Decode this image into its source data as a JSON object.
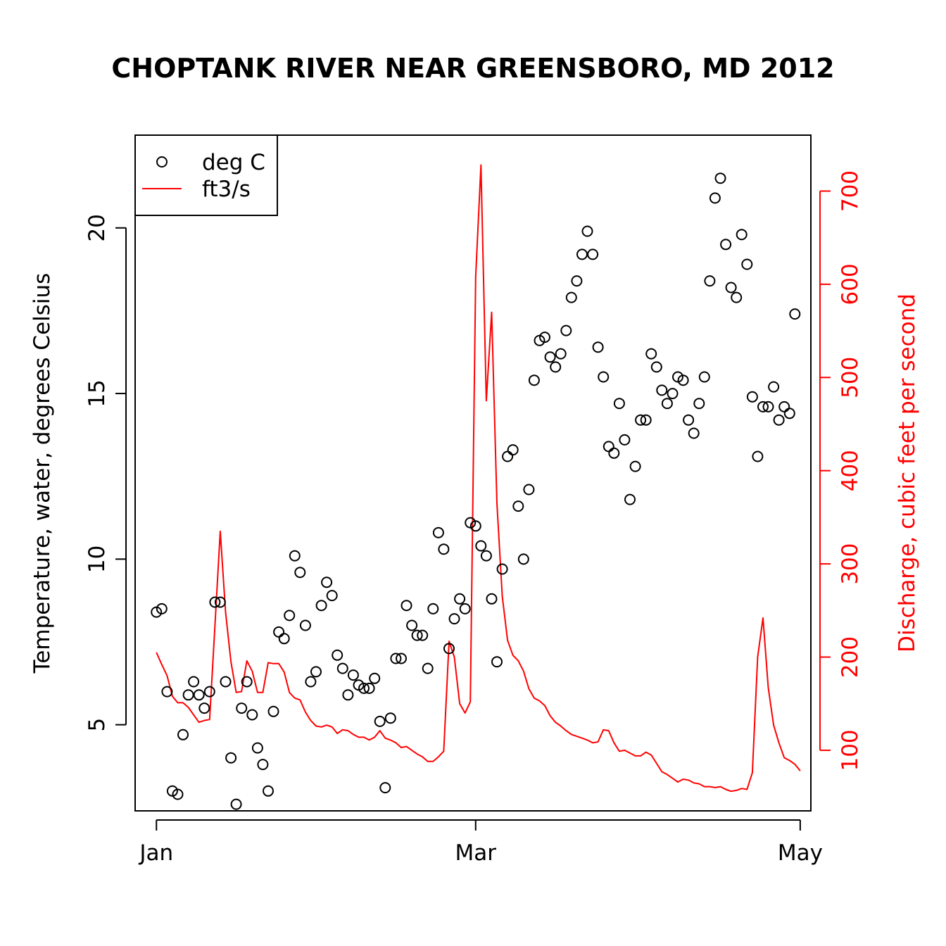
{
  "chart_data": {
    "type": "line",
    "title": "CHOPTANK RIVER NEAR GREENSBORO, MD 2012",
    "xlabel": "",
    "ylabel_left": "Temperature, water, degrees Celsius",
    "ylabel_right": "Discharge, cubic feet per second",
    "x_axis": {
      "type": "date",
      "range": [
        "2011-12-28",
        "2012-05-03"
      ],
      "ticks": [
        {
          "label": "Jan",
          "date": "2012-01-01"
        },
        {
          "label": "Mar",
          "date": "2012-03-01"
        },
        {
          "label": "May",
          "date": "2012-05-01"
        }
      ]
    },
    "y_left": {
      "range": [
        2.4,
        22.8
      ],
      "ticks": [
        5,
        10,
        15,
        20
      ]
    },
    "y_right": {
      "range": [
        35,
        760
      ],
      "ticks": [
        100,
        200,
        300,
        400,
        500,
        600,
        700
      ]
    },
    "legend": {
      "position": "top-left",
      "entries": [
        "deg C",
        "ft3/s"
      ]
    },
    "colors": {
      "temperature": "#000000",
      "discharge": "#ff0000"
    },
    "series": [
      {
        "name": "deg C",
        "kind": "scatter",
        "axis": "left",
        "color": "#000000",
        "points": [
          [
            "2012-01-01",
            8.4
          ],
          [
            "2012-01-02",
            8.5
          ],
          [
            "2012-01-03",
            6.0
          ],
          [
            "2012-01-04",
            3.0
          ],
          [
            "2012-01-05",
            2.9
          ],
          [
            "2012-01-06",
            4.7
          ],
          [
            "2012-01-07",
            5.9
          ],
          [
            "2012-01-08",
            6.3
          ],
          [
            "2012-01-09",
            5.9
          ],
          [
            "2012-01-10",
            5.5
          ],
          [
            "2012-01-11",
            6.0
          ],
          [
            "2012-01-12",
            8.7
          ],
          [
            "2012-01-13",
            8.7
          ],
          [
            "2012-01-14",
            6.3
          ],
          [
            "2012-01-15",
            4.0
          ],
          [
            "2012-01-16",
            2.6
          ],
          [
            "2012-01-17",
            5.5
          ],
          [
            "2012-01-18",
            6.3
          ],
          [
            "2012-01-19",
            5.3
          ],
          [
            "2012-01-20",
            4.3
          ],
          [
            "2012-01-21",
            3.8
          ],
          [
            "2012-01-22",
            3.0
          ],
          [
            "2012-01-23",
            5.4
          ],
          [
            "2012-01-24",
            7.8
          ],
          [
            "2012-01-25",
            7.6
          ],
          [
            "2012-01-26",
            8.3
          ],
          [
            "2012-01-27",
            10.1
          ],
          [
            "2012-01-28",
            9.6
          ],
          [
            "2012-01-29",
            8.0
          ],
          [
            "2012-01-30",
            6.3
          ],
          [
            "2012-01-31",
            6.6
          ],
          [
            "2012-02-01",
            8.6
          ],
          [
            "2012-02-02",
            9.3
          ],
          [
            "2012-02-03",
            8.9
          ],
          [
            "2012-02-04",
            7.1
          ],
          [
            "2012-02-05",
            6.7
          ],
          [
            "2012-02-06",
            5.9
          ],
          [
            "2012-02-07",
            6.5
          ],
          [
            "2012-02-08",
            6.2
          ],
          [
            "2012-02-09",
            6.1
          ],
          [
            "2012-02-10",
            6.1
          ],
          [
            "2012-02-11",
            6.4
          ],
          [
            "2012-02-12",
            5.1
          ],
          [
            "2012-02-13",
            3.1
          ],
          [
            "2012-02-14",
            5.2
          ],
          [
            "2012-02-15",
            7.0
          ],
          [
            "2012-02-16",
            7.0
          ],
          [
            "2012-02-17",
            8.6
          ],
          [
            "2012-02-18",
            8.0
          ],
          [
            "2012-02-19",
            7.7
          ],
          [
            "2012-02-20",
            7.7
          ],
          [
            "2012-02-21",
            6.7
          ],
          [
            "2012-02-22",
            8.5
          ],
          [
            "2012-02-23",
            10.8
          ],
          [
            "2012-02-24",
            10.3
          ],
          [
            "2012-02-25",
            7.3
          ],
          [
            "2012-02-26",
            8.2
          ],
          [
            "2012-02-27",
            8.8
          ],
          [
            "2012-02-28",
            8.5
          ],
          [
            "2012-02-29",
            11.1
          ],
          [
            "2012-03-01",
            11.0
          ],
          [
            "2012-03-02",
            10.4
          ],
          [
            "2012-03-03",
            10.1
          ],
          [
            "2012-03-04",
            8.8
          ],
          [
            "2012-03-05",
            6.9
          ],
          [
            "2012-03-06",
            9.7
          ],
          [
            "2012-03-07",
            13.1
          ],
          [
            "2012-03-08",
            13.3
          ],
          [
            "2012-03-09",
            11.6
          ],
          [
            "2012-03-10",
            10.0
          ],
          [
            "2012-03-11",
            12.1
          ],
          [
            "2012-03-12",
            15.4
          ],
          [
            "2012-03-13",
            16.6
          ],
          [
            "2012-03-14",
            16.7
          ],
          [
            "2012-03-15",
            16.1
          ],
          [
            "2012-03-16",
            15.8
          ],
          [
            "2012-03-17",
            16.2
          ],
          [
            "2012-03-18",
            16.9
          ],
          [
            "2012-03-19",
            17.9
          ],
          [
            "2012-03-20",
            18.4
          ],
          [
            "2012-03-21",
            19.2
          ],
          [
            "2012-03-22",
            19.9
          ],
          [
            "2012-03-23",
            19.2
          ],
          [
            "2012-03-24",
            16.4
          ],
          [
            "2012-03-25",
            15.5
          ],
          [
            "2012-03-26",
            13.4
          ],
          [
            "2012-03-27",
            13.2
          ],
          [
            "2012-03-28",
            14.7
          ],
          [
            "2012-03-29",
            13.6
          ],
          [
            "2012-03-30",
            11.8
          ],
          [
            "2012-03-31",
            12.8
          ],
          [
            "2012-04-01",
            14.2
          ],
          [
            "2012-04-02",
            14.2
          ],
          [
            "2012-04-03",
            16.2
          ],
          [
            "2012-04-04",
            15.8
          ],
          [
            "2012-04-05",
            15.1
          ],
          [
            "2012-04-06",
            14.7
          ],
          [
            "2012-04-07",
            15.0
          ],
          [
            "2012-04-08",
            15.5
          ],
          [
            "2012-04-09",
            15.4
          ],
          [
            "2012-04-10",
            14.2
          ],
          [
            "2012-04-11",
            13.8
          ],
          [
            "2012-04-12",
            14.7
          ],
          [
            "2012-04-13",
            15.5
          ],
          [
            "2012-04-14",
            18.4
          ],
          [
            "2012-04-15",
            20.9
          ],
          [
            "2012-04-16",
            21.5
          ],
          [
            "2012-04-17",
            19.5
          ],
          [
            "2012-04-18",
            18.2
          ],
          [
            "2012-04-19",
            17.9
          ],
          [
            "2012-04-20",
            19.8
          ],
          [
            "2012-04-21",
            18.9
          ],
          [
            "2012-04-22",
            14.9
          ],
          [
            "2012-04-23",
            13.1
          ],
          [
            "2012-04-24",
            14.6
          ],
          [
            "2012-04-25",
            14.6
          ],
          [
            "2012-04-26",
            15.2
          ],
          [
            "2012-04-27",
            14.2
          ],
          [
            "2012-04-28",
            14.6
          ],
          [
            "2012-04-29",
            14.4
          ],
          [
            "2012-04-30",
            17.4
          ]
        ]
      },
      {
        "name": "ft3/s",
        "kind": "line",
        "axis": "right",
        "color": "#ff0000",
        "points": [
          [
            "2012-01-01",
            205
          ],
          [
            "2012-01-02",
            192
          ],
          [
            "2012-01-03",
            180
          ],
          [
            "2012-01-04",
            158
          ],
          [
            "2012-01-05",
            151
          ],
          [
            "2012-01-06",
            151
          ],
          [
            "2012-01-07",
            146
          ],
          [
            "2012-01-08",
            138
          ],
          [
            "2012-01-09",
            130
          ],
          [
            "2012-01-10",
            132
          ],
          [
            "2012-01-11",
            133
          ],
          [
            "2012-01-12",
            234
          ],
          [
            "2012-01-13",
            335
          ],
          [
            "2012-01-14",
            248
          ],
          [
            "2012-01-15",
            195
          ],
          [
            "2012-01-16",
            162
          ],
          [
            "2012-01-17",
            163
          ],
          [
            "2012-01-18",
            196
          ],
          [
            "2012-01-19",
            185
          ],
          [
            "2012-01-20",
            162
          ],
          [
            "2012-01-21",
            162
          ],
          [
            "2012-01-22",
            194
          ],
          [
            "2012-01-23",
            193
          ],
          [
            "2012-01-24",
            193
          ],
          [
            "2012-01-25",
            184
          ],
          [
            "2012-01-26",
            162
          ],
          [
            "2012-01-27",
            156
          ],
          [
            "2012-01-28",
            154
          ],
          [
            "2012-01-29",
            141
          ],
          [
            "2012-01-30",
            132
          ],
          [
            "2012-01-31",
            126
          ],
          [
            "2012-02-01",
            125
          ],
          [
            "2012-02-02",
            127
          ],
          [
            "2012-02-03",
            125
          ],
          [
            "2012-02-04",
            118
          ],
          [
            "2012-02-05",
            122
          ],
          [
            "2012-02-06",
            121
          ],
          [
            "2012-02-07",
            117
          ],
          [
            "2012-02-08",
            114
          ],
          [
            "2012-02-09",
            114
          ],
          [
            "2012-02-10",
            111
          ],
          [
            "2012-02-11",
            114
          ],
          [
            "2012-02-12",
            121
          ],
          [
            "2012-02-13",
            113
          ],
          [
            "2012-02-14",
            111
          ],
          [
            "2012-02-15",
            108
          ],
          [
            "2012-02-16",
            103
          ],
          [
            "2012-02-17",
            104
          ],
          [
            "2012-02-18",
            100
          ],
          [
            "2012-02-19",
            96
          ],
          [
            "2012-02-20",
            93
          ],
          [
            "2012-02-21",
            88
          ],
          [
            "2012-02-22",
            88
          ],
          [
            "2012-02-23",
            93
          ],
          [
            "2012-02-24",
            99
          ],
          [
            "2012-02-25",
            217
          ],
          [
            "2012-02-26",
            200
          ],
          [
            "2012-02-27",
            150
          ],
          [
            "2012-02-28",
            140
          ],
          [
            "2012-02-29",
            152
          ],
          [
            "2012-03-01",
            608
          ],
          [
            "2012-03-02",
            728
          ],
          [
            "2012-03-03",
            475
          ],
          [
            "2012-03-04",
            570
          ],
          [
            "2012-03-05",
            365
          ],
          [
            "2012-03-06",
            265
          ],
          [
            "2012-03-07",
            218
          ],
          [
            "2012-03-08",
            202
          ],
          [
            "2012-03-09",
            196
          ],
          [
            "2012-03-10",
            185
          ],
          [
            "2012-03-11",
            166
          ],
          [
            "2012-03-12",
            156
          ],
          [
            "2012-03-13",
            153
          ],
          [
            "2012-03-14",
            148
          ],
          [
            "2012-03-15",
            137
          ],
          [
            "2012-03-16",
            130
          ],
          [
            "2012-03-17",
            126
          ],
          [
            "2012-03-18",
            121
          ],
          [
            "2012-03-19",
            117
          ],
          [
            "2012-03-20",
            115
          ],
          [
            "2012-03-21",
            113
          ],
          [
            "2012-03-22",
            111
          ],
          [
            "2012-03-23",
            108
          ],
          [
            "2012-03-24",
            109
          ],
          [
            "2012-03-25",
            122
          ],
          [
            "2012-03-26",
            121
          ],
          [
            "2012-03-27",
            108
          ],
          [
            "2012-03-28",
            99
          ],
          [
            "2012-03-29",
            100
          ],
          [
            "2012-03-30",
            97
          ],
          [
            "2012-03-31",
            94
          ],
          [
            "2012-04-01",
            94
          ],
          [
            "2012-04-02",
            98
          ],
          [
            "2012-04-03",
            95
          ],
          [
            "2012-04-04",
            86
          ],
          [
            "2012-04-05",
            77
          ],
          [
            "2012-04-06",
            74
          ],
          [
            "2012-04-07",
            70
          ],
          [
            "2012-04-08",
            66
          ],
          [
            "2012-04-09",
            69
          ],
          [
            "2012-04-10",
            68
          ],
          [
            "2012-04-11",
            65
          ],
          [
            "2012-04-12",
            64
          ],
          [
            "2012-04-13",
            61
          ],
          [
            "2012-04-14",
            61
          ],
          [
            "2012-04-15",
            60
          ],
          [
            "2012-04-16",
            61
          ],
          [
            "2012-04-17",
            58
          ],
          [
            "2012-04-18",
            56
          ],
          [
            "2012-04-19",
            57
          ],
          [
            "2012-04-20",
            59
          ],
          [
            "2012-04-21",
            58
          ],
          [
            "2012-04-22",
            76
          ],
          [
            "2012-04-23",
            200
          ],
          [
            "2012-04-24",
            242
          ],
          [
            "2012-04-25",
            167
          ],
          [
            "2012-04-26",
            127
          ],
          [
            "2012-04-27",
            108
          ],
          [
            "2012-04-28",
            92
          ],
          [
            "2012-04-29",
            89
          ],
          [
            "2012-04-30",
            85
          ],
          [
            "2012-05-01",
            78
          ]
        ]
      }
    ]
  }
}
